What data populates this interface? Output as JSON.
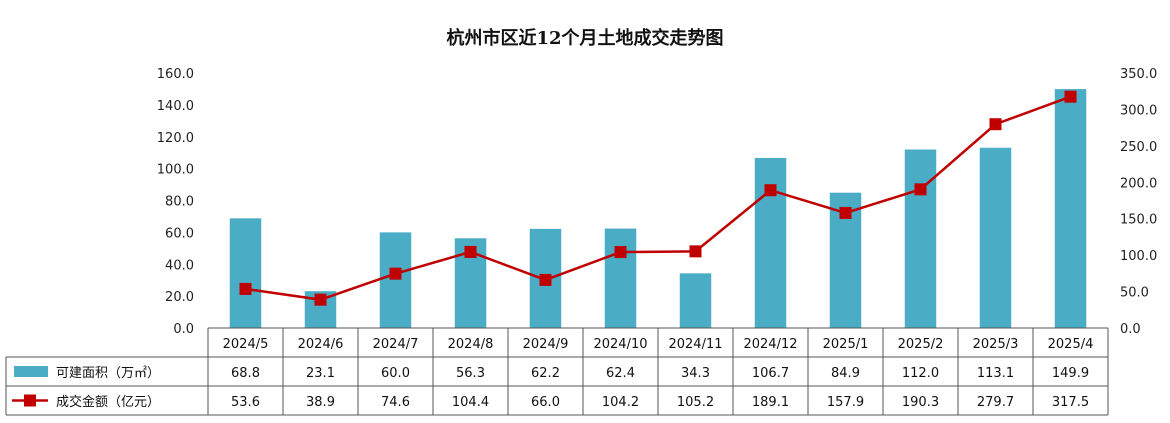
{
  "chart_data": {
    "type": "bar",
    "title": "杭州市区近12个月土地成交走势图",
    "categories": [
      "2024/5",
      "2024/6",
      "2024/7",
      "2024/8",
      "2024/9",
      "2024/10",
      "2024/11",
      "2024/12",
      "2025/1",
      "2025/2",
      "2025/3",
      "2025/4"
    ],
    "series": [
      {
        "name": "可建面积（万㎡）",
        "type": "bar",
        "axis": "left",
        "color": "#4BACC6",
        "values": [
          68.8,
          23.1,
          60.0,
          56.3,
          62.2,
          62.4,
          34.3,
          106.7,
          84.9,
          112.0,
          113.1,
          149.9
        ],
        "labels": [
          "68.8",
          "23.1",
          "60.0",
          "56.3",
          "62.2",
          "62.4",
          "34.3",
          "106.7",
          "84.9",
          "112.0",
          "113.1",
          "149.9"
        ]
      },
      {
        "name": "成交金额（亿元）",
        "type": "line",
        "axis": "right",
        "color": "#C00000",
        "values": [
          53.6,
          38.9,
          74.6,
          104.4,
          66.0,
          104.2,
          105.2,
          189.1,
          157.9,
          190.3,
          279.7,
          317.5
        ],
        "labels": [
          "53.6",
          "38.9",
          "74.6",
          "104.4",
          "66.0",
          "104.2",
          "105.2",
          "189.1",
          "157.9",
          "190.3",
          "279.7",
          "317.5"
        ]
      }
    ],
    "y_left": {
      "min": 0,
      "max": 160,
      "ticks": [
        "0.0",
        "20.0",
        "40.0",
        "60.0",
        "80.0",
        "100.0",
        "120.0",
        "140.0",
        "160.0"
      ]
    },
    "y_right": {
      "min": 0,
      "max": 350,
      "ticks": [
        "0.0",
        "50.0",
        "100.0",
        "150.0",
        "200.0",
        "250.0",
        "300.0",
        "350.0"
      ]
    },
    "grid": false,
    "legend": "data-table"
  }
}
